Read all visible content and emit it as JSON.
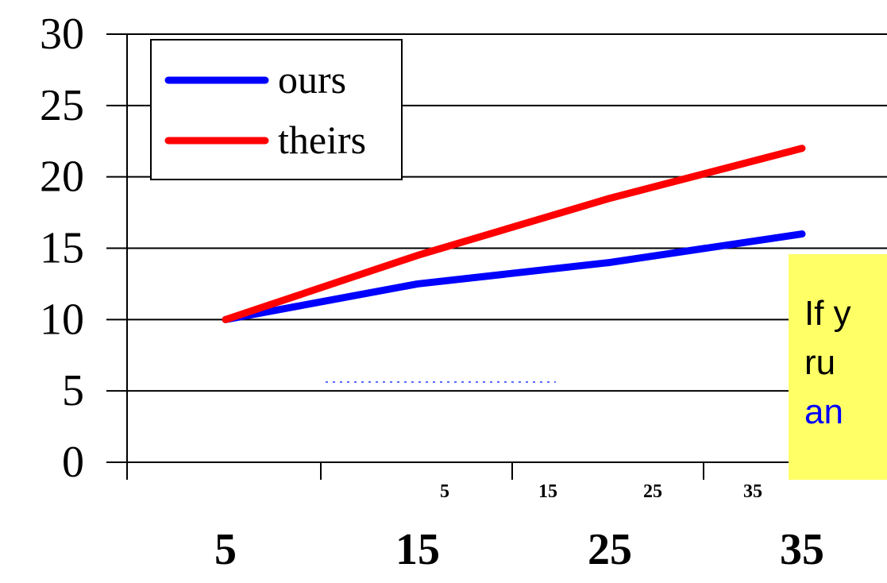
{
  "chart_data": {
    "type": "line",
    "y_ticks": [
      "0",
      "5",
      "10",
      "15",
      "20",
      "25",
      "30"
    ],
    "ylim": [
      0,
      30
    ],
    "x_tick_labels_large": [
      "5",
      "15",
      "25",
      "35"
    ],
    "x_tick_labels_small": [
      "5",
      "15",
      "25",
      "35"
    ],
    "xlim": [
      0,
      40
    ],
    "grid": "horizontal",
    "legend_placement": "top-left",
    "series": [
      {
        "name": "ours",
        "color": "#0000ff",
        "x": [
          5,
          15,
          25,
          35
        ],
        "y": [
          10,
          12.5,
          14,
          16
        ]
      },
      {
        "name": "theirs",
        "color": "#ff0000",
        "x": [
          5,
          15,
          25,
          35
        ],
        "y": [
          10,
          14.5,
          18.5,
          22
        ]
      }
    ]
  },
  "callout": {
    "line1": "If y",
    "line2": "ru",
    "line3": "an"
  }
}
